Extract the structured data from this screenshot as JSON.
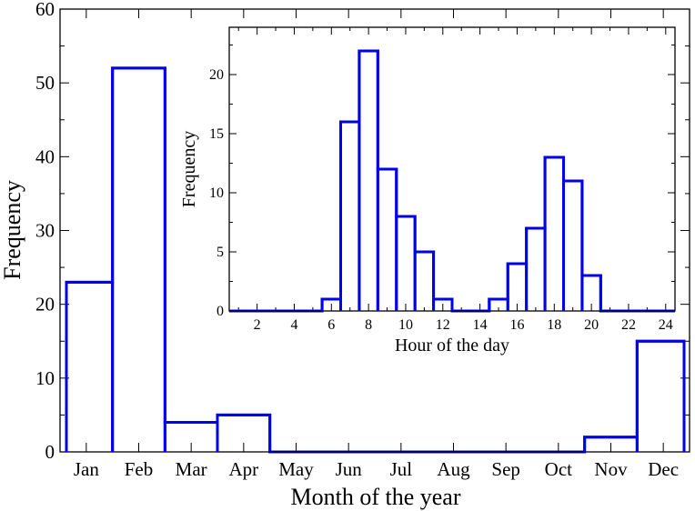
{
  "chart_data": [
    {
      "id": "main",
      "type": "bar",
      "categories": [
        "Jan",
        "Feb",
        "Mar",
        "Apr",
        "May",
        "Jun",
        "Jul",
        "Aug",
        "Sep",
        "Oct",
        "Nov",
        "Dec"
      ],
      "values": [
        23,
        52,
        4,
        5,
        0,
        0,
        0,
        0,
        0,
        0,
        2,
        15
      ],
      "title": "",
      "xlabel": "Month of the year",
      "ylabel": "Frequency",
      "ylim": [
        0,
        60
      ],
      "yticks": [
        0,
        10,
        20,
        30,
        40,
        50,
        60
      ],
      "style": "step-histogram",
      "grid": false
    },
    {
      "id": "inset",
      "type": "bar",
      "x": [
        1,
        2,
        3,
        4,
        5,
        6,
        7,
        8,
        9,
        10,
        11,
        12,
        13,
        14,
        15,
        16,
        17,
        18,
        19,
        20,
        21,
        22,
        23,
        24
      ],
      "values": [
        0,
        0,
        0,
        0,
        0,
        1,
        16,
        22,
        12,
        8,
        5,
        1,
        0,
        0,
        1,
        4,
        7,
        13,
        11,
        3,
        0,
        0,
        0,
        0
      ],
      "title": "",
      "xlabel": "Hour of the day",
      "ylabel": "Frequency",
      "xlim": [
        0.5,
        24.5
      ],
      "ylim": [
        0,
        24
      ],
      "xticks": [
        2,
        4,
        6,
        8,
        10,
        12,
        14,
        16,
        18,
        20,
        22,
        24
      ],
      "yticks": [
        0,
        5,
        10,
        15,
        20
      ],
      "style": "step-histogram",
      "grid": false
    }
  ],
  "colors": {
    "series": "#0000ee",
    "axes": "#000000",
    "background": "#ffffff"
  }
}
